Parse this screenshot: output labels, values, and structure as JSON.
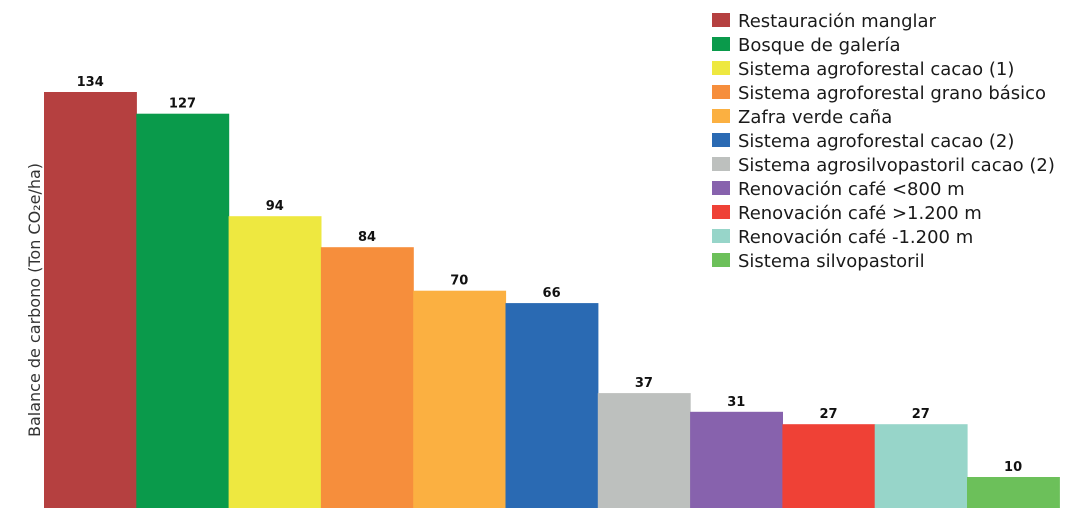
{
  "chart_data": {
    "type": "bar",
    "title": "",
    "xlabel": "",
    "ylabel": "Balance de carbono (Ton CO₂e/ha)",
    "ylim": [
      0,
      134
    ],
    "grid": false,
    "legend_position": "top-right",
    "categories": [
      "Restauración manglar",
      "Bosque de galería",
      "Sistema agroforestal cacao (1)",
      "Sistema agroforestal grano básico",
      "Zafra verde caña",
      "Sistema agroforestal cacao (2)",
      "Sistema agrosilvopastoril cacao (2)",
      "Renovación café <800 m",
      "Renovación café >1.200 m",
      "Renovación café -1.200 m",
      "Sistema silvopastoril"
    ],
    "values": [
      134,
      127,
      94,
      84,
      70,
      66,
      37,
      31,
      27,
      27,
      10
    ],
    "colors": [
      "#b54040",
      "#0a9a4b",
      "#eee840",
      "#f68e3c",
      "#fbb041",
      "#2a6ab3",
      "#bdc0be",
      "#8762ad",
      "#ef4136",
      "#97d5c9",
      "#6cc05a"
    ]
  }
}
